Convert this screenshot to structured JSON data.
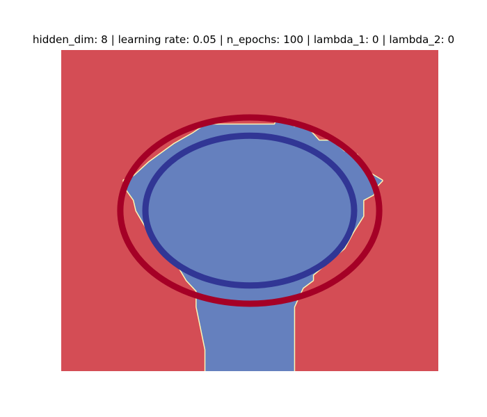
{
  "chart_data": {
    "type": "heatmap",
    "title": "hidden_dim: 8 | learning rate: 0.05 | n_epochs: 100 | lambda_1: 0 | lambda_2: 0",
    "xlabel": "",
    "ylabel": "",
    "axes_visible": false,
    "grid": false,
    "xlim": [
      -1.5,
      1.5
    ],
    "ylim": [
      -1.5,
      1.5
    ],
    "decision_regions": [
      {
        "class": "outer",
        "color": "#d44d55",
        "extent": "background"
      },
      {
        "class": "inner",
        "color": "#6580be",
        "boundary_polygon": [
          [
            0.2,
            0.8
          ],
          [
            0.22,
            0.85
          ],
          [
            0.3,
            0.85
          ],
          [
            0.35,
            0.78
          ],
          [
            0.45,
            0.78
          ],
          [
            0.55,
            0.65
          ],
          [
            0.65,
            0.65
          ],
          [
            0.75,
            0.55
          ],
          [
            0.85,
            0.52
          ],
          [
            0.95,
            0.35
          ],
          [
            1.05,
            0.28
          ],
          [
            1.0,
            0.22
          ],
          [
            0.98,
            0.15
          ],
          [
            0.9,
            0.1
          ],
          [
            0.9,
            -0.05
          ],
          [
            0.82,
            -0.2
          ],
          [
            0.75,
            -0.35
          ],
          [
            0.6,
            -0.5
          ],
          [
            0.5,
            -0.6
          ],
          [
            0.5,
            -0.65
          ],
          [
            0.42,
            -0.72
          ],
          [
            0.38,
            -0.82
          ],
          [
            0.35,
            -0.9
          ],
          [
            0.35,
            -1.5
          ],
          [
            -0.35,
            -1.5
          ],
          [
            -0.35,
            -1.3
          ],
          [
            -0.42,
            -0.9
          ],
          [
            -0.42,
            -0.75
          ],
          [
            -0.5,
            -0.65
          ],
          [
            -0.55,
            -0.55
          ],
          [
            -0.6,
            -0.45
          ],
          [
            -0.68,
            -0.38
          ],
          [
            -0.72,
            -0.3
          ],
          [
            -0.8,
            -0.2
          ],
          [
            -0.85,
            -0.1
          ],
          [
            -0.9,
            0.0
          ],
          [
            -0.92,
            0.1
          ],
          [
            -0.98,
            0.2
          ],
          [
            -1.0,
            0.28
          ],
          [
            -0.92,
            0.32
          ],
          [
            -0.8,
            0.45
          ],
          [
            -0.6,
            0.62
          ],
          [
            -0.45,
            0.72
          ],
          [
            -0.35,
            0.8
          ]
        ]
      }
    ],
    "series": [
      {
        "type": "circle",
        "center": [
          0,
          0
        ],
        "radius_x": 1.03,
        "radius_y": 0.87,
        "color": "#a50026"
      },
      {
        "type": "circle",
        "center": [
          0,
          0
        ],
        "radius_x": 0.83,
        "radius_y": 0.7,
        "color": "#313695"
      }
    ]
  }
}
